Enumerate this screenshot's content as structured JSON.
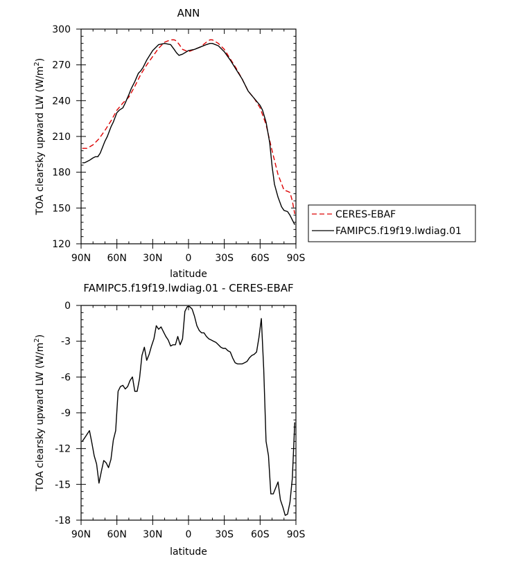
{
  "chart_data": [
    {
      "type": "line",
      "title": "ANN",
      "xlabel": "latitude",
      "ylabel": "TOA clearsky upward LW (W/m",
      "ylabel_sup": "2",
      "ylabel_tail": ")",
      "xlim": [
        -90,
        90
      ],
      "ylim": [
        120,
        300
      ],
      "x_ticks": [
        -90,
        -60,
        -30,
        0,
        30,
        60,
        90
      ],
      "x_tick_labels": [
        "90N",
        "60N",
        "30N",
        "0",
        "30S",
        "60S",
        "90S"
      ],
      "y_ticks": [
        120,
        150,
        180,
        210,
        240,
        270,
        300
      ],
      "y_tick_labels": [
        "120",
        "150",
        "180",
        "210",
        "240",
        "270",
        "300"
      ],
      "legend_position": "outside-right",
      "series": [
        {
          "name": "CERES-EBAF",
          "color": "#dd0000",
          "dash": "dashed",
          "x": [
            -89,
            -85,
            -80,
            -75,
            -70,
            -65,
            -60,
            -55,
            -50,
            -45,
            -40,
            -35,
            -30,
            -25,
            -20,
            -15,
            -12,
            -10,
            -7,
            -5,
            0,
            5,
            10,
            15,
            18,
            20,
            25,
            30,
            35,
            40,
            45,
            50,
            55,
            60,
            65,
            70,
            75,
            80,
            83,
            85,
            87,
            89
          ],
          "y": [
            200,
            200,
            203,
            208,
            215,
            223,
            232,
            238,
            243,
            252,
            262,
            270,
            277,
            284,
            289,
            291,
            291,
            290,
            286,
            283,
            281,
            283,
            285,
            289,
            291,
            291,
            288,
            283,
            275,
            267,
            258,
            248,
            242,
            234,
            220,
            198,
            178,
            165,
            164,
            163,
            156,
            145
          ]
        },
        {
          "name": "FAMIPC5.f19f19.lwdiag.01",
          "color": "#000000",
          "dash": "solid",
          "x": [
            -89,
            -87,
            -85,
            -83,
            -80,
            -78,
            -76,
            -74,
            -72,
            -70,
            -68,
            -65,
            -63,
            -60,
            -58,
            -55,
            -53,
            -50,
            -48,
            -45,
            -42,
            -40,
            -38,
            -35,
            -30,
            -25,
            -20,
            -15,
            -12,
            -10,
            -8,
            -5,
            0,
            5,
            10,
            15,
            18,
            20,
            25,
            30,
            35,
            40,
            45,
            50,
            55,
            60,
            62,
            65,
            68,
            70,
            72,
            75,
            78,
            80,
            83,
            85,
            87,
            89
          ],
          "y": [
            188,
            188,
            189,
            190,
            192,
            193,
            193,
            196,
            201,
            206,
            210,
            218,
            222,
            230,
            232,
            234,
            238,
            245,
            250,
            256,
            263,
            265,
            268,
            274,
            282,
            287,
            288,
            287,
            283,
            280,
            278,
            279,
            282,
            283,
            285,
            287,
            288,
            288,
            286,
            281,
            274,
            266,
            258,
            248,
            242,
            236,
            232,
            222,
            205,
            185,
            170,
            159,
            151,
            148,
            147,
            144,
            140,
            136
          ]
        }
      ]
    },
    {
      "type": "line",
      "title": "FAMIPC5.f19f19.lwdiag.01 - CERES-EBAF",
      "xlabel": "latitude",
      "ylabel": "TOA clearsky upward LW (W/m",
      "ylabel_sup": "2",
      "ylabel_tail": ")",
      "xlim": [
        -90,
        90
      ],
      "ylim": [
        -18,
        0
      ],
      "x_ticks": [
        -90,
        -60,
        -30,
        0,
        30,
        60,
        90
      ],
      "x_tick_labels": [
        "90N",
        "60N",
        "30N",
        "0",
        "30S",
        "60S",
        "90S"
      ],
      "y_ticks": [
        -18,
        -15,
        -12,
        -9,
        -6,
        -3,
        0
      ],
      "y_tick_labels": [
        "-18",
        "-15",
        "-12",
        "-9",
        "-6",
        "-3",
        "0"
      ],
      "series": [
        {
          "name": "",
          "color": "#000000",
          "dash": "solid",
          "x": [
            -89,
            -87,
            -85,
            -83,
            -81,
            -79,
            -77,
            -75,
            -73,
            -71,
            -69,
            -67,
            -65,
            -63,
            -61,
            -59,
            -57,
            -55,
            -53,
            -51,
            -49,
            -47,
            -45,
            -43,
            -41,
            -39,
            -37,
            -35,
            -33,
            -31,
            -29,
            -27,
            -25,
            -23,
            -21,
            -19,
            -17,
            -15,
            -13,
            -11,
            -9,
            -7,
            -5,
            -3,
            -1,
            1,
            3,
            5,
            7,
            9,
            11,
            13,
            15,
            17,
            19,
            21,
            23,
            25,
            27,
            29,
            31,
            33,
            35,
            37,
            39,
            41,
            43,
            45,
            47,
            49,
            51,
            53,
            55,
            57,
            59,
            61,
            63,
            65,
            67,
            69,
            71,
            73,
            75,
            77,
            79,
            81,
            83,
            85,
            87,
            89
          ],
          "y": [
            -11.4,
            -11.1,
            -10.8,
            -10.5,
            -11.5,
            -12.6,
            -13.3,
            -14.9,
            -13.9,
            -13.0,
            -13.2,
            -13.6,
            -12.9,
            -11.3,
            -10.5,
            -7.2,
            -6.8,
            -6.7,
            -7.0,
            -6.8,
            -6.3,
            -6.0,
            -7.2,
            -7.2,
            -6.1,
            -4.2,
            -3.5,
            -4.6,
            -4.1,
            -3.4,
            -2.8,
            -1.7,
            -2.0,
            -1.8,
            -2.2,
            -2.6,
            -2.9,
            -3.4,
            -3.3,
            -3.3,
            -2.6,
            -3.3,
            -2.8,
            -0.5,
            -0.1,
            -0.1,
            -0.3,
            -0.9,
            -1.7,
            -2.1,
            -2.3,
            -2.3,
            -2.6,
            -2.8,
            -2.9,
            -3.0,
            -3.1,
            -3.3,
            -3.5,
            -3.6,
            -3.6,
            -3.8,
            -3.9,
            -4.4,
            -4.8,
            -4.9,
            -4.9,
            -4.9,
            -4.8,
            -4.7,
            -4.4,
            -4.2,
            -4.1,
            -3.9,
            -2.7,
            -1.1,
            -5.3,
            -11.4,
            -12.6,
            -15.8,
            -15.8,
            -15.3,
            -14.8,
            -16.3,
            -16.9,
            -17.6,
            -17.5,
            -16.5,
            -14.5,
            -9.8
          ]
        }
      ]
    }
  ]
}
